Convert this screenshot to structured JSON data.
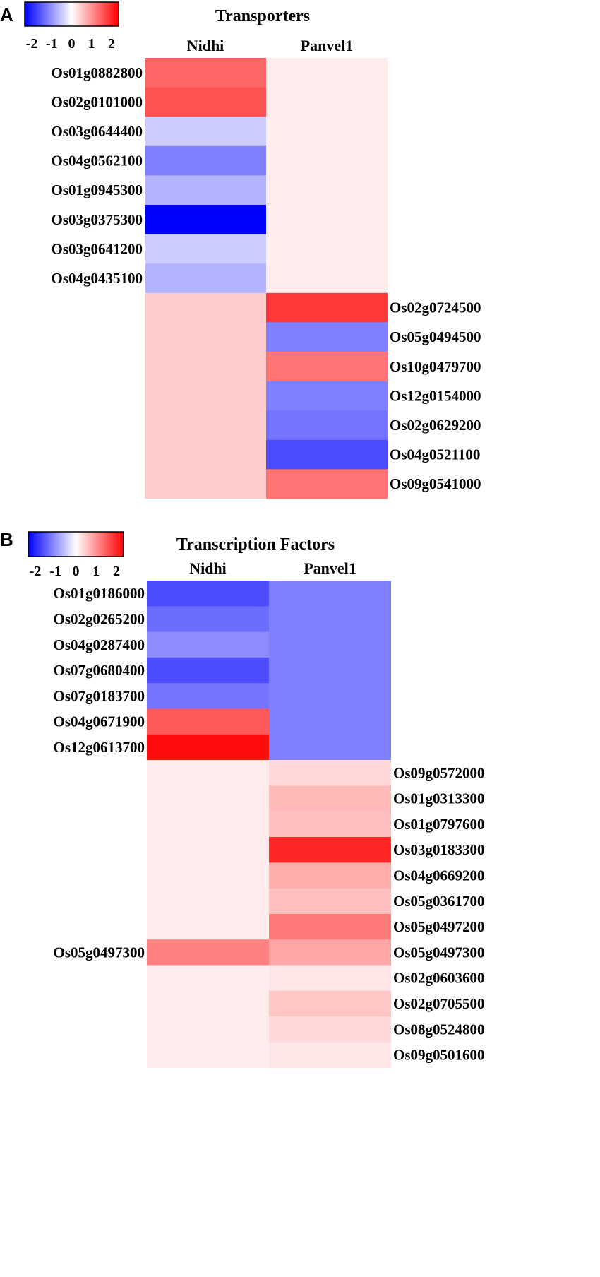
{
  "chart_data": [
    {
      "type": "heatmap",
      "panel_label": "A",
      "title": "Transporters",
      "columns": [
        "Nidhi",
        "Panvel1"
      ],
      "colorscale": {
        "min": -2,
        "max": 2,
        "ticks": [
          "-2",
          "-1",
          "0",
          "1",
          "2"
        ],
        "low_color": "#0000ff",
        "mid_color": "#ffffff",
        "high_color": "#ff0000"
      },
      "groups": [
        {
          "label_side": "left",
          "rows": [
            {
              "gene": "Os01g0882800",
              "Nidhi": 1.2
            },
            {
              "gene": "Os02g0101000",
              "Nidhi": 1.35
            },
            {
              "gene": "Os03g0644400",
              "Nidhi": -0.4
            },
            {
              "gene": "Os04g0562100",
              "Nidhi": -1.0
            },
            {
              "gene": "Os01g0945300",
              "Nidhi": -0.6
            },
            {
              "gene": "Os03g0375300",
              "Nidhi": -2.0
            },
            {
              "gene": "Os03g0641200",
              "Nidhi": -0.4
            },
            {
              "gene": "Os04g0435100",
              "Nidhi": -0.6
            }
          ],
          "Panvel1_block": 0.15
        },
        {
          "label_side": "right",
          "rows": [
            {
              "gene": "Os02g0724500",
              "Panvel1": 1.55
            },
            {
              "gene": "Os05g0494500",
              "Panvel1": -1.0
            },
            {
              "gene": "Os10g0479700",
              "Panvel1": 1.1
            },
            {
              "gene": "Os12g0154000",
              "Panvel1": -1.0
            },
            {
              "gene": "Os02g0629200",
              "Panvel1": -1.1
            },
            {
              "gene": "Os04g0521100",
              "Panvel1": -1.4
            },
            {
              "gene": "Os09g0541000",
              "Panvel1": 1.1
            }
          ],
          "Nidhi_block": 0.4
        }
      ]
    },
    {
      "type": "heatmap",
      "panel_label": "B",
      "title": "Transcription Factors",
      "columns": [
        "Nidhi",
        "Panvel1"
      ],
      "colorscale": {
        "min": -2,
        "max": 2,
        "ticks": [
          "-2",
          "-1",
          "0",
          "1",
          "2"
        ],
        "low_color": "#0000ff",
        "mid_color": "#ffffff",
        "high_color": "#ff0000"
      },
      "groups": [
        {
          "label_side": "left",
          "rows": [
            {
              "gene": "Os01g0186000",
              "Nidhi": -1.4
            },
            {
              "gene": "Os02g0265200",
              "Nidhi": -1.15
            },
            {
              "gene": "Os04g0287400",
              "Nidhi": -0.9
            },
            {
              "gene": "Os07g0680400",
              "Nidhi": -1.4
            },
            {
              "gene": "Os07g0183700",
              "Nidhi": -1.1
            },
            {
              "gene": "Os04g0671900",
              "Nidhi": 1.3
            },
            {
              "gene": "Os12g0613700",
              "Nidhi": 1.9
            }
          ],
          "Panvel1_block": -1.0
        },
        {
          "label_side": "right",
          "rows": [
            {
              "gene": "Os09g0572000",
              "Panvel1": 0.3
            },
            {
              "gene": "Os01g0313300",
              "Panvel1": 0.55
            },
            {
              "gene": "Os01g0797600",
              "Panvel1": 0.5
            },
            {
              "gene": "Os03g0183300",
              "Panvel1": 1.7
            },
            {
              "gene": "Os04g0669200",
              "Panvel1": 0.65
            },
            {
              "gene": "Os05g0361700",
              "Panvel1": 0.5
            },
            {
              "gene": "Os05g0497200",
              "Panvel1": 1.05
            }
          ],
          "Nidhi_block": 0.15
        },
        {
          "label_side": "both",
          "rows": [
            {
              "gene": "Os05g0497300",
              "Nidhi": 1.0,
              "Panvel1": 0.7
            }
          ]
        },
        {
          "label_side": "right",
          "rows": [
            {
              "gene": "Os02g0603600",
              "Panvel1": 0.2
            },
            {
              "gene": "Os02g0705500",
              "Panvel1": 0.45
            },
            {
              "gene": "Os08g0524800",
              "Panvel1": 0.3
            },
            {
              "gene": "Os09g0501600",
              "Panvel1": 0.2
            }
          ],
          "Nidhi_block": 0.15
        }
      ]
    }
  ]
}
